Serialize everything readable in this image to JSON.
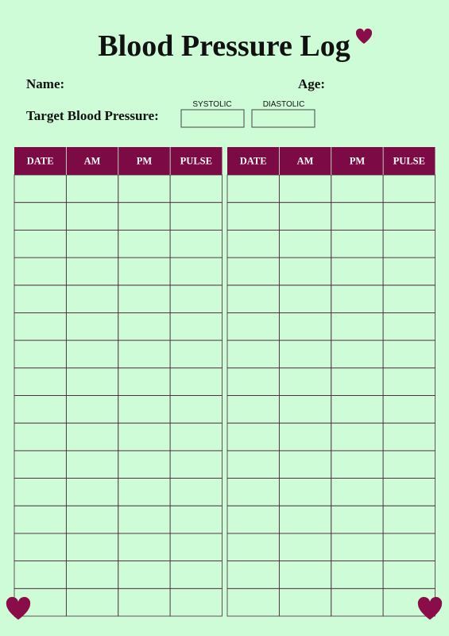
{
  "header": {
    "title": "Blood Pressure Log"
  },
  "fields": {
    "name": "Name:",
    "age": "Age:",
    "target": "Target Blood Pressure:",
    "systolic": "SYSTOLIC",
    "diastolic": "DIASTOLIC"
  },
  "tables": [
    {
      "columns": [
        "DATE",
        "AM",
        "PM",
        "PULSE"
      ]
    },
    {
      "columns": [
        "DATE",
        "AM",
        "PM",
        "PULSE"
      ]
    }
  ]
}
